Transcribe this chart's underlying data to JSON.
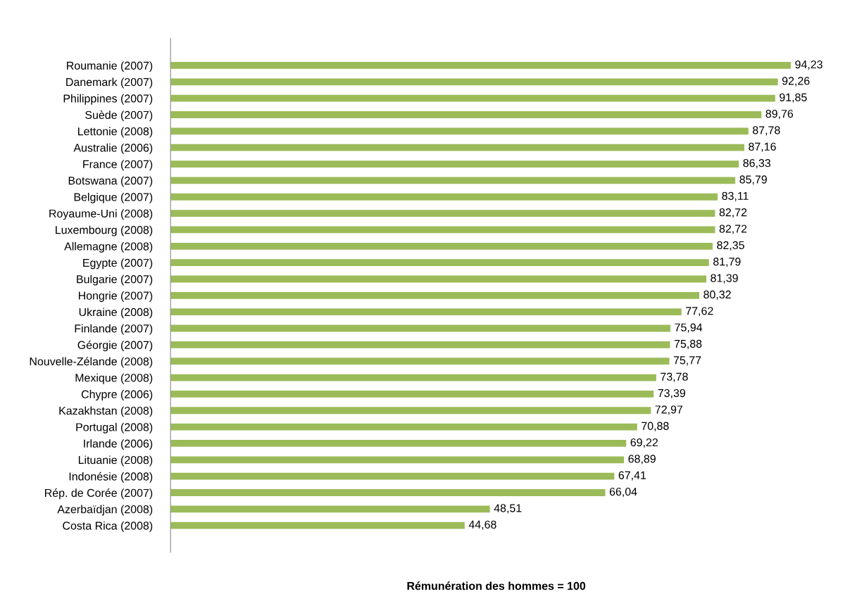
{
  "chart_data": {
    "type": "bar",
    "orientation": "horizontal",
    "xlabel": "Rémunération des hommes = 100",
    "categories": [
      "Roumanie (2007)",
      "Danemark (2007)",
      "Philippines (2007)",
      "Suède (2007)",
      "Lettonie (2008)",
      "Australie (2006)",
      "France (2007)",
      "Botswana (2007)",
      "Belgique (2007)",
      "Royaume-Uni (2008)",
      "Luxembourg (2008)",
      "Allemagne (2008)",
      "Egypte (2007)",
      "Bulgarie (2007)",
      "Hongrie (2007)",
      "Ukraine (2008)",
      "Finlande (2007)",
      "Géorgie (2007)",
      "Nouvelle-Zélande (2008)",
      "Mexique (2008)",
      "Chypre (2006)",
      "Kazakhstan (2008)",
      "Portugal (2008)",
      "Irlande (2006)",
      "Lituanie (2008)",
      "Indonésie (2008)",
      "Rép. de Corée (2007)",
      "Azerbaïdjan (2008)",
      "Costa Rica (2008)"
    ],
    "values": [
      94.23,
      92.26,
      91.85,
      89.76,
      87.78,
      87.16,
      86.33,
      85.79,
      83.11,
      82.72,
      82.72,
      82.35,
      81.79,
      81.39,
      80.32,
      77.62,
      75.94,
      75.88,
      75.77,
      73.78,
      73.39,
      72.97,
      70.88,
      69.22,
      68.89,
      67.41,
      66.04,
      48.51,
      44.68
    ],
    "value_labels": [
      "94,23",
      "92,26",
      "91,85",
      "89,76",
      "87,78",
      "87,16",
      "86,33",
      "85,79",
      "83,11",
      "82,72",
      "82,72",
      "82,35",
      "81,79",
      "81,39",
      "80,32",
      "77,62",
      "75,94",
      "75,88",
      "75,77",
      "73,78",
      "73,39",
      "72,97",
      "70,88",
      "69,22",
      "68,89",
      "67,41",
      "66,04",
      "48,51",
      "44,68"
    ],
    "color": "#9bbb59",
    "grid": false,
    "legend": false
  }
}
